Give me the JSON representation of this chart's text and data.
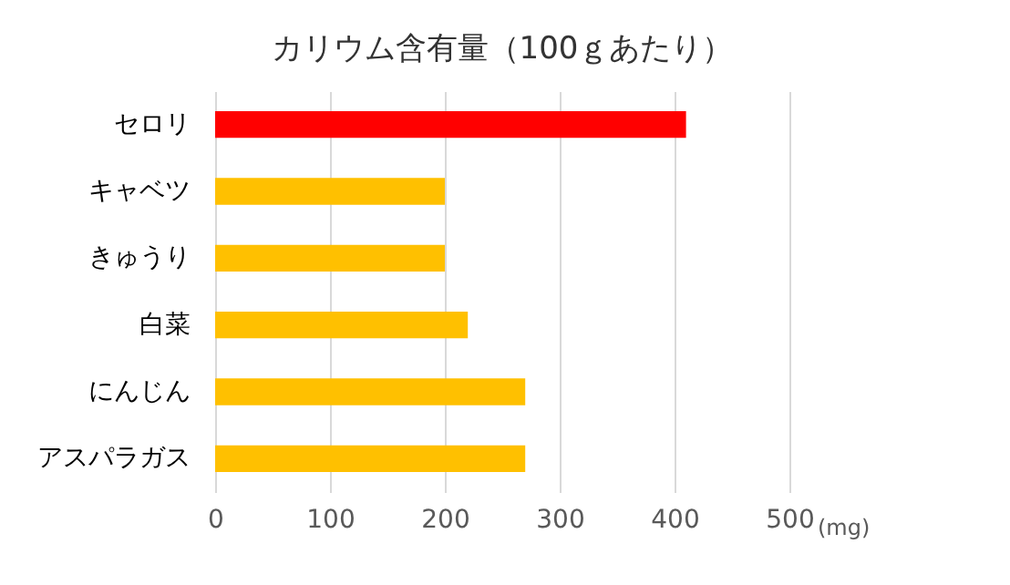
{
  "chart_data": {
    "type": "bar",
    "orientation": "horizontal",
    "title": "カリウム含有量（100ｇあたり）",
    "xlabel": "(mg)",
    "categories": [
      "セロリ",
      "キャベツ",
      "きゅうり",
      "白菜",
      "にんじん",
      "アスパラガス"
    ],
    "values": [
      410,
      200,
      200,
      220,
      270,
      270
    ],
    "colors": [
      "#ff0000",
      "#ffc000",
      "#ffc000",
      "#ffc000",
      "#ffc000",
      "#ffc000"
    ],
    "xlim": [
      0,
      500
    ],
    "xticks": [
      0,
      100,
      200,
      300,
      400,
      500
    ],
    "grid": "x"
  }
}
